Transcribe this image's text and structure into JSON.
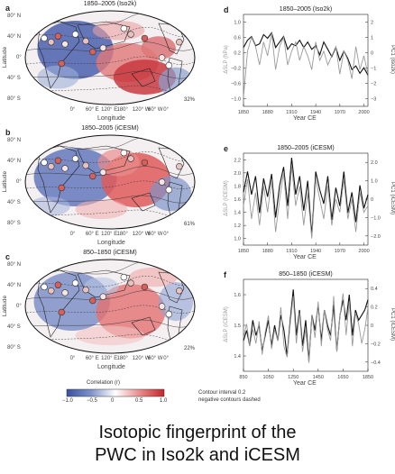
{
  "maps": [
    {
      "letter": "a",
      "title": "1850–2005 (Iso2k)",
      "pct": "32%",
      "lat_labels": [
        "80° N",
        "40° N",
        "0°",
        "40° S",
        "80° S"
      ],
      "lon_labels": [
        "0°",
        "60° E",
        "120° E",
        "180°",
        "120° W",
        "60° W",
        "0°"
      ],
      "xlabel": "Longitude",
      "ylabel": "Latitude"
    },
    {
      "letter": "b",
      "title": "1850–2005 (iCESM)",
      "pct": "61%",
      "lat_labels": [
        "80° N",
        "40° N",
        "0°",
        "40° S",
        "80° S"
      ],
      "lon_labels": [
        "0°",
        "60° E",
        "120° E",
        "180°",
        "120° W",
        "60° W",
        "0°"
      ],
      "xlabel": "Longitude",
      "ylabel": "Latitude"
    },
    {
      "letter": "c",
      "title": "850–1850 (iCESM)",
      "pct": "22%",
      "lat_labels": [
        "80° N",
        "40° N",
        "0°",
        "40° S",
        "80° S"
      ],
      "lon_labels": [
        "0°",
        "60° E",
        "120° E",
        "180°",
        "120° W",
        "60° W",
        "0°"
      ],
      "xlabel": "Longitude",
      "ylabel": "Latitude"
    }
  ],
  "colorbar": {
    "label": "Correlation (r)",
    "ticks": [
      "−1.0",
      "−0.5",
      "0",
      "0.5",
      "1.0"
    ],
    "colors": [
      "#3a4fa0",
      "#7f93c8",
      "#ffffff",
      "#e88a8a",
      "#c2262b"
    ],
    "note_line1": "Contour interval 0.2",
    "note_line2": "negative contours dashed"
  },
  "colors": {
    "black_series": "#111111",
    "gray_series": "#9a9a9a"
  },
  "caption": {
    "line1": "Isotopic fingerprint of the",
    "line2": "PWC in Iso2k and iCESM"
  },
  "chart_data": [
    {
      "type": "line",
      "letter": "d",
      "title": "1850–2005 (Iso2k)",
      "xlabel": "Year CE",
      "ylabel_left": "ΔSLP (hPa)",
      "ylabel_right": "PC1 (Iso2k)",
      "xlim": [
        1850,
        2005
      ],
      "ylim_left": [
        -1.0,
        1.0
      ],
      "ylim_right": [
        -3,
        2
      ],
      "xticks": [
        1850,
        1880,
        1910,
        1940,
        1970,
        2000
      ],
      "yticks_left": [
        "1.0",
        "0.6",
        "0.2",
        "−0.2",
        "−0.6",
        "−1.0"
      ],
      "yticks_right": [
        "2",
        "1",
        "0",
        "−1",
        "−2",
        "−3"
      ],
      "series": [
        {
          "color": "black",
          "axis": "right",
          "x": [
            1850,
            1855,
            1860,
            1865,
            1870,
            1875,
            1880,
            1885,
            1890,
            1895,
            1900,
            1905,
            1910,
            1915,
            1920,
            1925,
            1930,
            1935,
            1940,
            1945,
            1950,
            1955,
            1960,
            1965,
            1970,
            1975,
            1980,
            1985,
            1990,
            1995,
            2000,
            2005
          ],
          "y": [
            0.2,
            0.6,
            0.8,
            0.3,
            0.4,
            0.9,
            0.7,
            1.0,
            0.2,
            0.5,
            0.8,
            0.1,
            0.4,
            0.3,
            0.6,
            0.2,
            0.5,
            0.1,
            0.3,
            -0.2,
            0.5,
            0.1,
            -0.3,
            0.2,
            -0.5,
            0.0,
            -0.4,
            -1.0,
            -0.8,
            -1.2,
            -0.9,
            -1.3
          ]
        },
        {
          "color": "gray",
          "axis": "left",
          "x": [
            1850,
            1855,
            1860,
            1865,
            1870,
            1875,
            1880,
            1885,
            1890,
            1895,
            1900,
            1905,
            1910,
            1915,
            1920,
            1925,
            1930,
            1935,
            1940,
            1945,
            1950,
            1955,
            1960,
            1965,
            1970,
            1975,
            1980,
            1985,
            1990,
            1995,
            2000,
            2005
          ],
          "y": [
            -0.8,
            0.2,
            0.5,
            0.3,
            -0.1,
            0.4,
            0.1,
            0.6,
            -0.2,
            0.3,
            0.5,
            -0.1,
            0.2,
            0.4,
            0.0,
            0.3,
            0.1,
            -0.2,
            0.4,
            0.0,
            0.2,
            -0.1,
            0.1,
            0.3,
            -0.3,
            0.2,
            0.0,
            -0.4,
            0.3,
            -0.2,
            0.1,
            -0.3
          ]
        }
      ]
    },
    {
      "type": "line",
      "letter": "e",
      "title": "1850–2005 (iCESM)",
      "xlabel": "Year CE",
      "ylabel_left": "ΔSLP (iCESM)",
      "ylabel_right": "PC1 (iCESM)",
      "xlim": [
        1850,
        2005
      ],
      "ylim_left": [
        0.9,
        2.3
      ],
      "ylim_right": [
        -2,
        2
      ],
      "xticks": [
        1850,
        1880,
        1910,
        1940,
        1970,
        2000
      ],
      "yticks_left": [
        "2.2",
        "2.0",
        "1.8",
        "1.6",
        "1.4",
        "1.2",
        "1.0"
      ],
      "yticks_right": [
        "2.0",
        "1.0",
        "0",
        "−1.0",
        "−2.0"
      ],
      "series": [
        {
          "color": "black",
          "axis": "right",
          "x": [
            1850,
            1855,
            1860,
            1865,
            1870,
            1875,
            1880,
            1885,
            1890,
            1895,
            1900,
            1905,
            1910,
            1915,
            1920,
            1925,
            1930,
            1935,
            1940,
            1945,
            1950,
            1955,
            1960,
            1965,
            1970,
            1975,
            1980,
            1985,
            1990,
            1995,
            2000,
            2005
          ],
          "y": [
            0.3,
            1.2,
            0.2,
            1.0,
            -0.6,
            0.9,
            0.1,
            1.1,
            -0.8,
            0.6,
            1.4,
            -0.3,
            1.8,
            0.2,
            1.0,
            -0.5,
            0.8,
            -1.6,
            1.2,
            0.4,
            -0.2,
            1.0,
            -0.9,
            0.5,
            -0.3,
            1.2,
            -0.6,
            0.3,
            -1.0,
            0.6,
            -0.4,
            0.2
          ]
        },
        {
          "color": "gray",
          "axis": "left",
          "x": [
            1850,
            1855,
            1860,
            1865,
            1870,
            1875,
            1880,
            1885,
            1890,
            1895,
            1900,
            1905,
            1910,
            1915,
            1920,
            1925,
            1930,
            1935,
            1940,
            1945,
            1950,
            1955,
            1960,
            1965,
            1970,
            1975,
            1980,
            1985,
            1990,
            1995,
            2000,
            2005
          ],
          "y": [
            1.5,
            1.9,
            1.3,
            1.7,
            1.2,
            1.8,
            1.4,
            1.9,
            1.1,
            1.6,
            2.0,
            1.3,
            2.1,
            1.5,
            1.8,
            1.2,
            1.7,
            1.0,
            1.9,
            1.6,
            1.3,
            1.8,
            1.2,
            1.6,
            1.4,
            1.9,
            1.3,
            1.6,
            1.1,
            1.7,
            1.4,
            1.5
          ]
        }
      ]
    },
    {
      "type": "line",
      "letter": "f",
      "title": "850–1850 (iCESM)",
      "xlabel": "Year CE",
      "ylabel_left": "ΔSLP (iCESM)",
      "ylabel_right": "PC1 (iCESM)",
      "xlim": [
        850,
        1850
      ],
      "ylim_left": [
        1.35,
        1.68
      ],
      "ylim_right": [
        -0.45,
        0.45
      ],
      "xticks": [
        850,
        1050,
        1250,
        1450,
        1650,
        1850
      ],
      "yticks_left": [
        "1.6",
        "1.5",
        "1.4"
      ],
      "yticks_right": [
        "0.4",
        "0.2",
        "0",
        "−0.2",
        "−0.4"
      ],
      "series": [
        {
          "color": "black",
          "axis": "right",
          "x": [
            850,
            875,
            900,
            925,
            950,
            975,
            1000,
            1025,
            1050,
            1075,
            1100,
            1125,
            1150,
            1175,
            1200,
            1225,
            1250,
            1275,
            1300,
            1325,
            1350,
            1375,
            1400,
            1425,
            1450,
            1475,
            1500,
            1525,
            1550,
            1575,
            1600,
            1625,
            1650,
            1675,
            1700,
            1725,
            1750,
            1775,
            1800,
            1825,
            1850
          ],
          "y": [
            -0.15,
            -0.05,
            -0.2,
            0.05,
            -0.1,
            0.0,
            -0.25,
            -0.1,
            0.05,
            -0.2,
            0.0,
            -0.15,
            0.1,
            -0.05,
            -0.3,
            0.05,
            0.35,
            -0.1,
            0.15,
            -0.2,
            0.05,
            -0.35,
            0.1,
            -0.05,
            0.2,
            -0.15,
            0.15,
            0.0,
            -0.1,
            0.2,
            -0.25,
            0.1,
            0.25,
            0.05,
            0.3,
            -0.1,
            0.15,
            0.05,
            0.1,
            0.15,
            0.25
          ]
        },
        {
          "color": "gray",
          "axis": "left",
          "x": [
            850,
            875,
            900,
            925,
            950,
            975,
            1000,
            1025,
            1050,
            1075,
            1100,
            1125,
            1150,
            1175,
            1200,
            1225,
            1250,
            1275,
            1300,
            1325,
            1350,
            1375,
            1400,
            1425,
            1450,
            1475,
            1500,
            1525,
            1550,
            1575,
            1600,
            1625,
            1650,
            1675,
            1700,
            1725,
            1750,
            1775,
            1800,
            1825,
            1850
          ],
          "y": [
            1.47,
            1.52,
            1.44,
            1.5,
            1.45,
            1.53,
            1.41,
            1.49,
            1.55,
            1.43,
            1.5,
            1.46,
            1.58,
            1.44,
            1.4,
            1.52,
            1.62,
            1.45,
            1.56,
            1.42,
            1.5,
            1.38,
            1.55,
            1.47,
            1.6,
            1.44,
            1.57,
            1.5,
            1.46,
            1.62,
            1.42,
            1.55,
            1.63,
            1.48,
            1.6,
            1.44,
            1.56,
            1.52,
            1.45,
            1.5,
            1.58
          ]
        }
      ]
    }
  ]
}
